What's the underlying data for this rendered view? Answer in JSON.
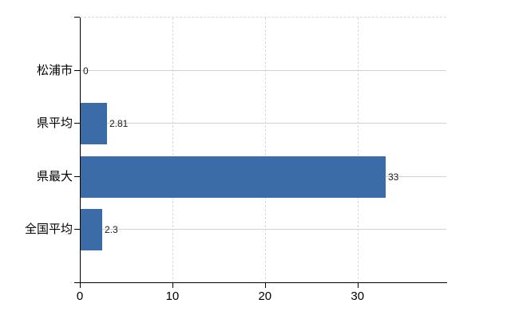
{
  "chart_data": {
    "type": "bar",
    "orientation": "horizontal",
    "title": "",
    "xlabel": "",
    "ylabel": "",
    "categories": [
      "松浦市",
      "県平均",
      "県最大",
      "全国平均"
    ],
    "values": [
      0,
      2.81,
      33,
      2.3
    ],
    "value_labels": [
      "0",
      "2.81",
      "33",
      "2.3"
    ],
    "xticks": [
      0,
      10,
      20,
      30
    ],
    "xtick_labels": [
      "0",
      "10",
      "20",
      "30"
    ],
    "xlim": [
      0,
      39.6
    ],
    "legend": null,
    "grid": {
      "horizontal_category_lines": "solid",
      "vertical_tick_lines": "dashed",
      "plot_top_border": "dashed"
    },
    "colors": {
      "bar": "#3B6CA8",
      "axis": "#000000",
      "grid_horizontal": "#cdd5cd",
      "grid_vertical": "#d8d8d8",
      "category_text": "#000000",
      "value_text": "#1a1a1a",
      "background": "#ffffff"
    }
  }
}
